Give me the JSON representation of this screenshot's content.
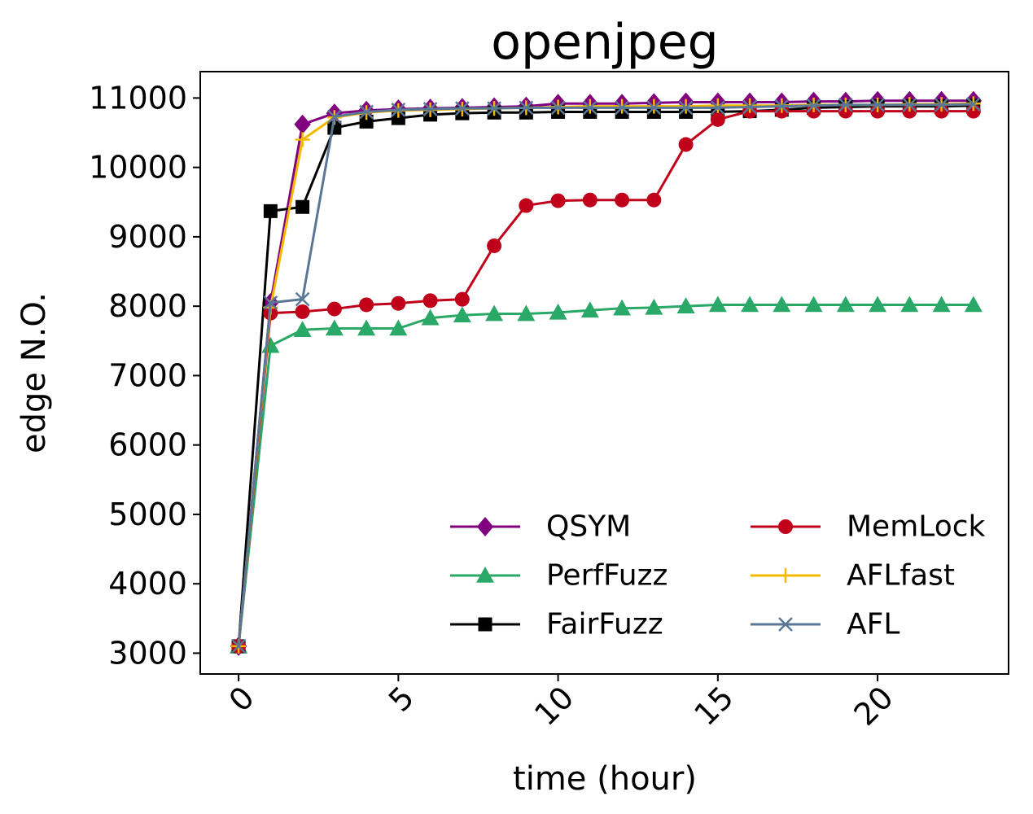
{
  "chart_data": {
    "type": "line",
    "title": "openjpeg",
    "xlabel": "time (hour)",
    "ylabel": "edge N.O.",
    "xlim": [
      -1.2,
      24.1
    ],
    "ylim": [
      2700,
      11380
    ],
    "xticks": [
      0,
      5,
      10,
      15,
      20
    ],
    "yticks": [
      3000,
      4000,
      5000,
      6000,
      7000,
      8000,
      9000,
      10000,
      11000
    ],
    "grid": false,
    "legend_position": "lower-right",
    "x": [
      0,
      1,
      2,
      3,
      4,
      5,
      6,
      7,
      8,
      9,
      10,
      11,
      12,
      13,
      14,
      15,
      16,
      17,
      18,
      19,
      20,
      21,
      22,
      23
    ],
    "series": [
      {
        "name": "QSYM",
        "color": "#800080",
        "marker": "diamond",
        "values": [
          3100,
          8050,
          10620,
          10780,
          10820,
          10840,
          10850,
          10860,
          10870,
          10880,
          10920,
          10920,
          10920,
          10930,
          10940,
          10940,
          10940,
          10940,
          10950,
          10950,
          10960,
          10960,
          10960,
          10960
        ]
      },
      {
        "name": "PerfFuzz",
        "color": "#2aa868",
        "marker": "triangle",
        "values": [
          3100,
          7430,
          7660,
          7680,
          7680,
          7680,
          7830,
          7870,
          7890,
          7890,
          7910,
          7940,
          7970,
          7980,
          8000,
          8020,
          8020,
          8020,
          8020,
          8020,
          8020,
          8020,
          8020,
          8020
        ]
      },
      {
        "name": "FairFuzz",
        "color": "#000000",
        "marker": "square",
        "values": [
          3100,
          9370,
          9430,
          10570,
          10660,
          10710,
          10760,
          10780,
          10790,
          10790,
          10800,
          10800,
          10800,
          10800,
          10800,
          10800,
          10810,
          10830,
          10860,
          10870,
          10880,
          10880,
          10880,
          10890
        ]
      },
      {
        "name": "MemLock",
        "color": "#c0001a",
        "marker": "circle",
        "values": [
          3100,
          7900,
          7920,
          7960,
          8020,
          8040,
          8080,
          8100,
          8870,
          9450,
          9520,
          9530,
          9530,
          9530,
          10330,
          10690,
          10810,
          10810,
          10810,
          10810,
          10810,
          10810,
          10810,
          10810
        ]
      },
      {
        "name": "AFLfast",
        "color": "#f5b800",
        "marker": "plus",
        "values": [
          3100,
          7980,
          10400,
          10720,
          10790,
          10820,
          10830,
          10840,
          10850,
          10860,
          10870,
          10880,
          10880,
          10880,
          10880,
          10890,
          10890,
          10890,
          10900,
          10900,
          10900,
          10910,
          10910,
          10920
        ]
      },
      {
        "name": "AFL",
        "color": "#5a7896",
        "marker": "x",
        "values": [
          3100,
          8050,
          8100,
          10730,
          10800,
          10830,
          10840,
          10850,
          10850,
          10860,
          10860,
          10860,
          10860,
          10860,
          10860,
          10860,
          10870,
          10880,
          10890,
          10900,
          10900,
          10900,
          10900,
          10910
        ]
      }
    ]
  }
}
